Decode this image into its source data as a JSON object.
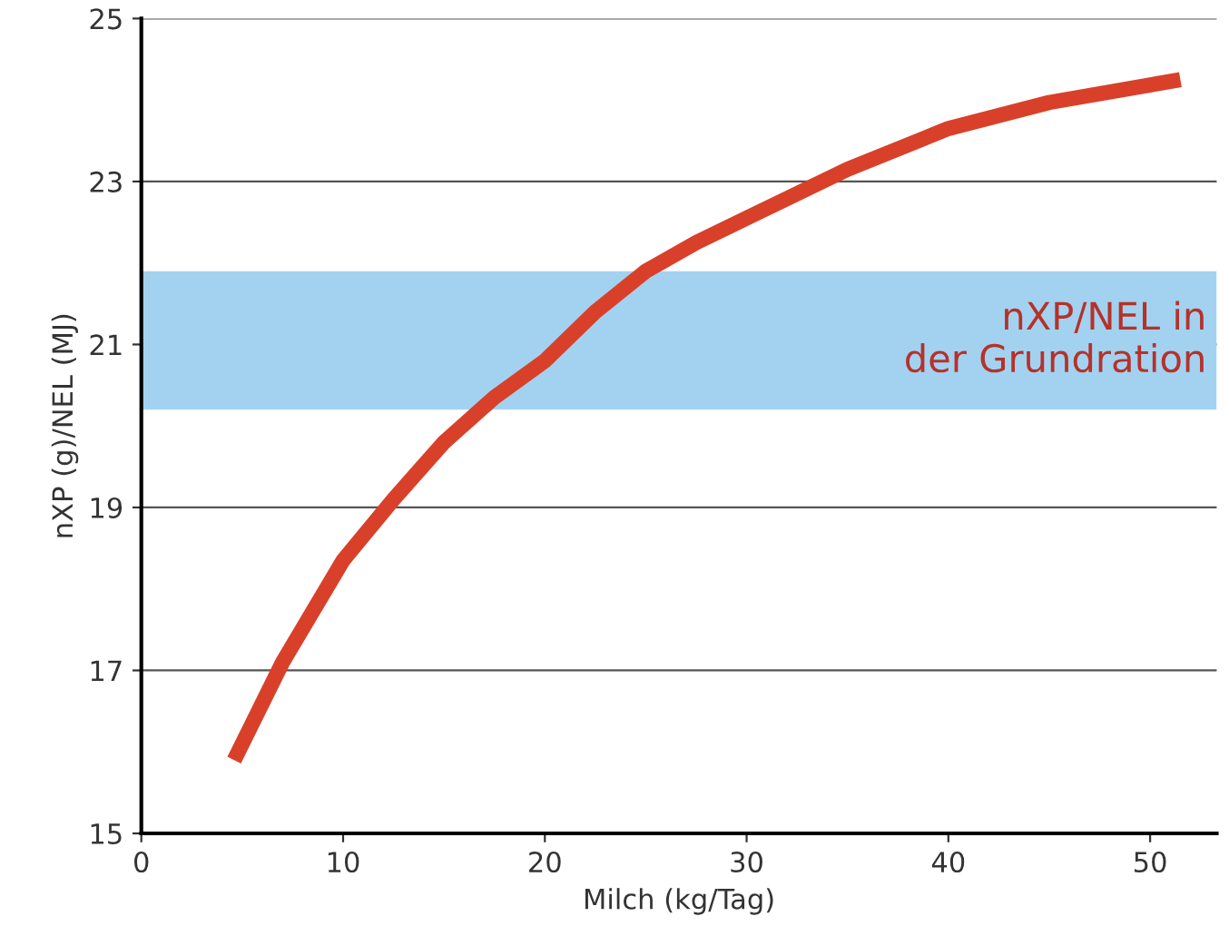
{
  "chart_data": {
    "type": "line",
    "xlabel": "Milch (kg/Tag)",
    "ylabel": "nXP (g)/NEL (MJ)",
    "x": [
      4.6,
      7,
      10,
      12.5,
      15,
      17.5,
      20,
      22.5,
      25,
      27.5,
      30,
      35,
      40,
      45,
      51.5
    ],
    "series": [
      {
        "color": "#d9402a",
        "values": [
          15.9,
          17.1,
          18.35,
          19.1,
          19.8,
          20.35,
          20.8,
          21.4,
          21.9,
          22.25,
          22.55,
          23.15,
          23.65,
          23.97,
          24.25
        ]
      }
    ],
    "xlim": [
      0,
      53.3
    ],
    "ylim": [
      15,
      25
    ],
    "xticks": [
      0,
      10,
      20,
      30,
      40,
      50
    ],
    "yticks": [
      15,
      17,
      19,
      21,
      23,
      25
    ],
    "grid": "y",
    "legend": false,
    "marker": "none",
    "line_style": "solid",
    "bands": [
      {
        "axis": "y",
        "from": 20.2,
        "to": 21.9,
        "label": "nXP/NEL in\nder Grundration",
        "color": "#a3d2f0"
      }
    ]
  }
}
